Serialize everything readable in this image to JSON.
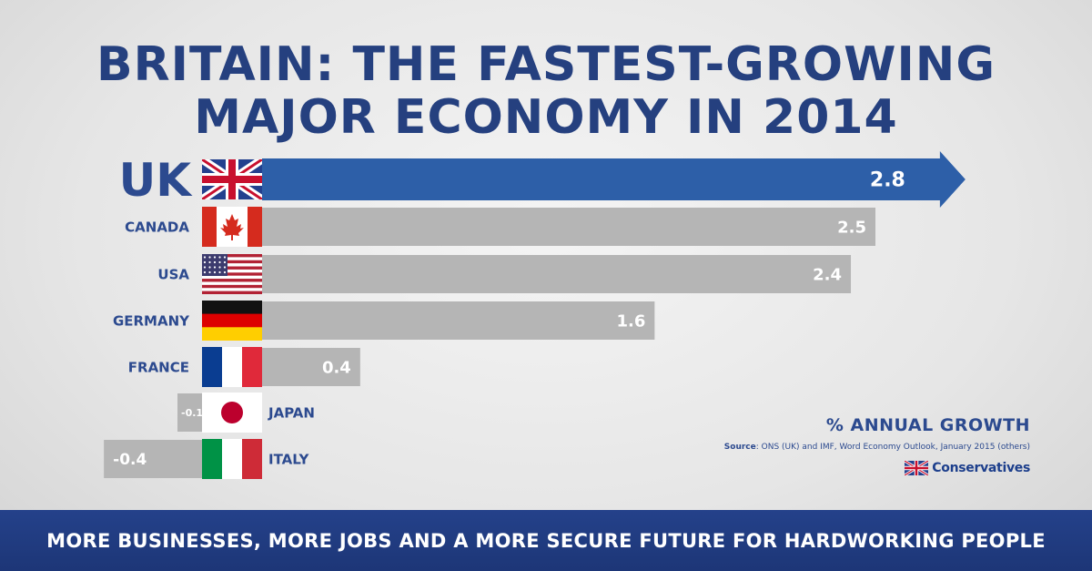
{
  "title": {
    "line1": "BRITAIN: THE FASTEST-GROWING",
    "line2": "MAJOR ECONOMY IN 2014"
  },
  "chart_data": {
    "type": "bar",
    "orientation": "horizontal",
    "categories": [
      "UK",
      "CANADA",
      "USA",
      "GERMANY",
      "FRANCE",
      "JAPAN",
      "ITALY"
    ],
    "values": [
      2.8,
      2.5,
      2.4,
      1.6,
      0.4,
      -0.1,
      -0.4
    ],
    "value_labels": [
      "2.8",
      "2.5",
      "2.4",
      "1.6",
      "0.4",
      "-0.1",
      "-0.4"
    ],
    "flags": [
      "uk-flag",
      "canada-flag",
      "usa-flag",
      "germany-flag",
      "france-flag",
      "japan-flag",
      "italy-flag"
    ],
    "highlight": "UK",
    "unit_label": "% ANNUAL GROWTH",
    "colors": {
      "highlight": "#2d5fa8",
      "default": "#b5b5b5",
      "text": "#2c4a8f"
    }
  },
  "legend": {
    "title": "% ANNUAL GROWTH",
    "source_label": "Source",
    "source_text": ": ONS (UK) and IMF, Word Economy Outlook, January 2015 (others)",
    "logo_text": "Conservatives"
  },
  "footer": {
    "text": "MORE BUSINESSES, MORE JOBS AND A MORE SECURE FUTURE FOR HARDWORKING PEOPLE"
  }
}
